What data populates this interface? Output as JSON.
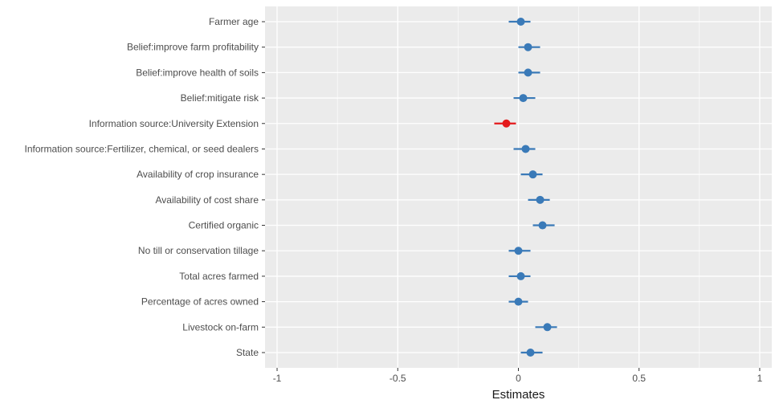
{
  "chart_data": {
    "type": "scatter",
    "subtype": "coefficient-plot",
    "xlabel": "Estimates",
    "ylabel": "",
    "xlim": [
      -1.05,
      1.05
    ],
    "x_ticks": [
      -1,
      -0.5,
      0,
      0.5,
      1
    ],
    "x_tick_labels": [
      "-1",
      "-0.5",
      "0",
      "0.5",
      "1"
    ],
    "grid": true,
    "panel_background": "#ebebeb",
    "grid_color": "#ffffff",
    "colors": {
      "positive": "#3a7ab8",
      "negative": "#e41a1c"
    },
    "points": [
      {
        "label": "Farmer age",
        "estimate": 0.01,
        "lower": -0.04,
        "upper": 0.05,
        "sign": "positive"
      },
      {
        "label": "Belief:improve farm profitability",
        "estimate": 0.04,
        "lower": 0.0,
        "upper": 0.09,
        "sign": "positive"
      },
      {
        "label": "Belief:improve health of soils",
        "estimate": 0.04,
        "lower": 0.0,
        "upper": 0.09,
        "sign": "positive"
      },
      {
        "label": "Belief:mitigate risk",
        "estimate": 0.02,
        "lower": -0.02,
        "upper": 0.07,
        "sign": "positive"
      },
      {
        "label": "Information source:University Extension",
        "estimate": -0.05,
        "lower": -0.1,
        "upper": -0.01,
        "sign": "negative"
      },
      {
        "label": "Information source:Fertilizer, chemical, or seed dealers",
        "estimate": 0.03,
        "lower": -0.02,
        "upper": 0.07,
        "sign": "positive"
      },
      {
        "label": "Availability of crop insurance",
        "estimate": 0.06,
        "lower": 0.01,
        "upper": 0.1,
        "sign": "positive"
      },
      {
        "label": "Availability of cost share",
        "estimate": 0.09,
        "lower": 0.04,
        "upper": 0.13,
        "sign": "positive"
      },
      {
        "label": "Certified organic",
        "estimate": 0.1,
        "lower": 0.06,
        "upper": 0.15,
        "sign": "positive"
      },
      {
        "label": "No till or conservation tillage",
        "estimate": 0.0,
        "lower": -0.04,
        "upper": 0.05,
        "sign": "positive"
      },
      {
        "label": "Total acres farmed",
        "estimate": 0.01,
        "lower": -0.04,
        "upper": 0.05,
        "sign": "positive"
      },
      {
        "label": "Percentage of acres owned",
        "estimate": 0.0,
        "lower": -0.04,
        "upper": 0.04,
        "sign": "positive"
      },
      {
        "label": "Livestock on-farm",
        "estimate": 0.12,
        "lower": 0.07,
        "upper": 0.16,
        "sign": "positive"
      },
      {
        "label": "State",
        "estimate": 0.05,
        "lower": 0.01,
        "upper": 0.1,
        "sign": "positive"
      }
    ]
  }
}
